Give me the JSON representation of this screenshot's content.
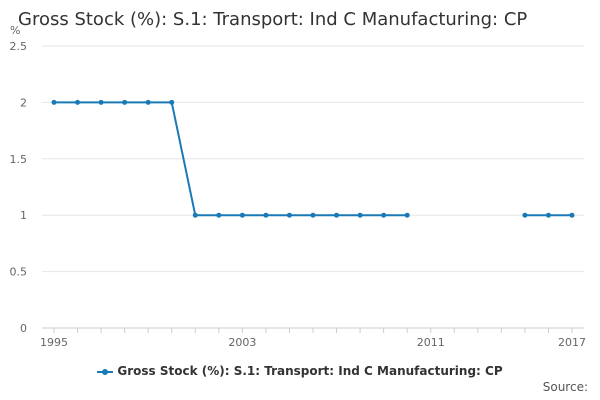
{
  "title": "Gross Stock (%): S.1: Transport: Ind C Manufacturing: CP",
  "unit_label": "%",
  "source_label": "Source:",
  "colors": {
    "series": "#1a7ab5",
    "grid": "#e6e6e6",
    "axis": "#cccccc"
  },
  "chart_data": {
    "type": "line",
    "title": "Gross Stock (%): S.1: Transport: Ind C Manufacturing: CP",
    "xlabel": "",
    "ylabel": "%",
    "ylim": [
      0,
      2.5
    ],
    "xlim": [
      1995,
      2017
    ],
    "y_ticks": [
      0,
      0.5,
      1,
      1.5,
      2,
      2.5
    ],
    "x_tick_labels": [
      1995,
      2003,
      2011,
      2017
    ],
    "grid": "horizontal",
    "legend_position": "bottom",
    "series": [
      {
        "name": "Gross Stock (%): S.1: Transport: Ind C Manufacturing: CP",
        "x": [
          1995,
          1996,
          1997,
          1998,
          1999,
          2000,
          2001,
          2002,
          2003,
          2004,
          2005,
          2006,
          2007,
          2008,
          2009,
          2010,
          2011,
          2012,
          2013,
          2014,
          2015,
          2016,
          2017
        ],
        "y": [
          2,
          2,
          2,
          2,
          2,
          2,
          1,
          1,
          1,
          1,
          1,
          1,
          1,
          1,
          1,
          1,
          null,
          null,
          null,
          null,
          1,
          1,
          1
        ]
      }
    ]
  }
}
